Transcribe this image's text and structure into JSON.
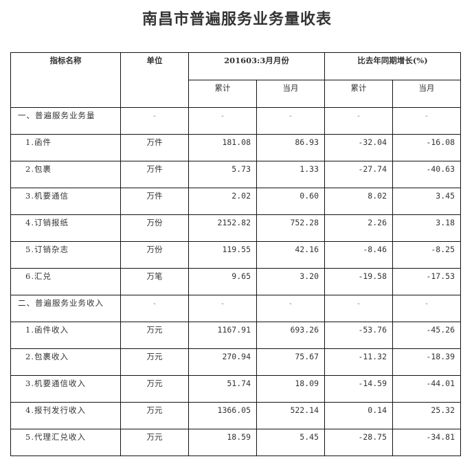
{
  "title": "南昌市普遍服务业务量收表",
  "header": {
    "name": "指标名称",
    "unit": "单位",
    "period": "201603:3月月份",
    "growth": "比去年同期增长(%)",
    "cumulative": "累计",
    "month": "当月",
    "cumulative2": "累计",
    "month2": "当月"
  },
  "rows": [
    {
      "type": "section",
      "name": "一、普遍服务业务量",
      "unit": "-",
      "cum": "-",
      "mon": "-",
      "gcum": "-",
      "gmon": "-"
    },
    {
      "type": "item",
      "name": "1.函件",
      "unit": "万件",
      "cum": "181.08",
      "mon": "86.93",
      "gcum": "-32.04",
      "gmon": "-16.08"
    },
    {
      "type": "item",
      "name": "2.包裹",
      "unit": "万件",
      "cum": "5.73",
      "mon": "1.33",
      "gcum": "-27.74",
      "gmon": "-40.63"
    },
    {
      "type": "item",
      "name": "3.机要通信",
      "unit": "万件",
      "cum": "2.02",
      "mon": "0.60",
      "gcum": "8.02",
      "gmon": "3.45"
    },
    {
      "type": "item",
      "name": "4.订销报纸",
      "unit": "万份",
      "cum": "2152.82",
      "mon": "752.28",
      "gcum": "2.26",
      "gmon": "3.18"
    },
    {
      "type": "item",
      "name": "5.订销杂志",
      "unit": "万份",
      "cum": "119.55",
      "mon": "42.16",
      "gcum": "-8.46",
      "gmon": "-8.25"
    },
    {
      "type": "item",
      "name": "6.汇兑",
      "unit": "万笔",
      "cum": "9.65",
      "mon": "3.20",
      "gcum": "-19.58",
      "gmon": "-17.53"
    },
    {
      "type": "section",
      "name": "二、普遍服务业务收入",
      "unit": "-",
      "cum": "-",
      "mon": "-",
      "gcum": "-",
      "gmon": "-"
    },
    {
      "type": "item",
      "name": "1.函件收入",
      "unit": "万元",
      "cum": "1167.91",
      "mon": "693.26",
      "gcum": "-53.76",
      "gmon": "-45.26"
    },
    {
      "type": "item",
      "name": "2.包裹收入",
      "unit": "万元",
      "cum": "270.94",
      "mon": "75.67",
      "gcum": "-11.32",
      "gmon": "-18.39"
    },
    {
      "type": "item",
      "name": "3.机要通信收入",
      "unit": "万元",
      "cum": "51.74",
      "mon": "18.09",
      "gcum": "-14.59",
      "gmon": "-44.01"
    },
    {
      "type": "item",
      "name": "4.报刊发行收入",
      "unit": "万元",
      "cum": "1366.05",
      "mon": "522.14",
      "gcum": "0.14",
      "gmon": "25.32"
    },
    {
      "type": "item",
      "name": "5.代理汇兑收入",
      "unit": "万元",
      "cum": "18.59",
      "mon": "5.45",
      "gcum": "-28.75",
      "gmon": "-34.81"
    }
  ]
}
